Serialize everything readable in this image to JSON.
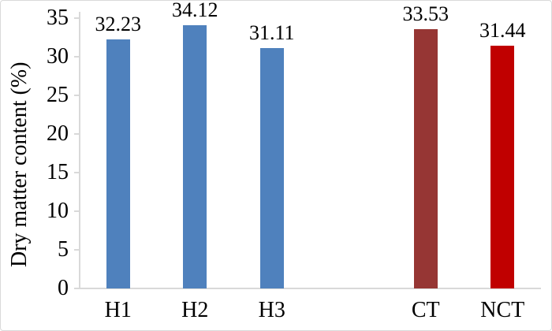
{
  "chart_data": {
    "type": "bar",
    "title": "",
    "xlabel": "",
    "ylabel": "Dry matter content (%)",
    "ylim": [
      0,
      35
    ],
    "yticks": [
      0,
      5,
      10,
      15,
      20,
      25,
      30,
      35
    ],
    "grid": false,
    "legend": "none",
    "categories": [
      "H1",
      "H2",
      "H3",
      "CT",
      "NCT"
    ],
    "values": [
      32.23,
      34.12,
      31.11,
      33.53,
      31.44
    ],
    "data_labels": [
      "32.23",
      "34.12",
      "31.11",
      "33.53",
      "31.44"
    ],
    "bar_colors": [
      "#4f81bd",
      "#4f81bd",
      "#4f81bd",
      "#963634",
      "#c00000"
    ],
    "slots": [
      0,
      1,
      2,
      4,
      5
    ],
    "num_slots": 6,
    "axis_color": "#d9d9d9",
    "text_color": "#000000",
    "background_color": "#ffffff"
  }
}
